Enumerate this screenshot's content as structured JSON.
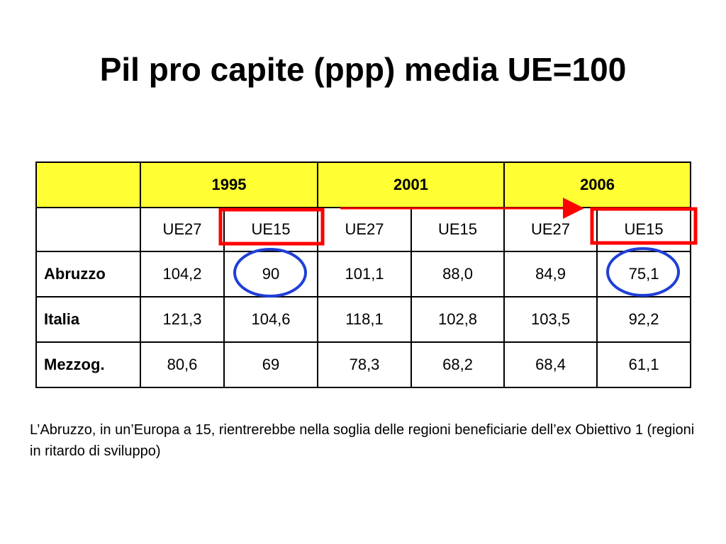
{
  "title": "Pil pro capite (ppp) media UE=100",
  "table": {
    "years": [
      "1995",
      "2001",
      "2006"
    ],
    "subheaders": [
      "UE27",
      "UE15",
      "UE27",
      "UE15",
      "UE27",
      "UE15"
    ],
    "rows": [
      {
        "label": "Abruzzo",
        "values": [
          "104,2",
          "90",
          "101,1",
          "88,0",
          "84,9",
          "75,1"
        ]
      },
      {
        "label": "Italia",
        "values": [
          "121,3",
          "104,6",
          "118,1",
          "102,8",
          "103,5",
          "92,2"
        ]
      },
      {
        "label": "Mezzog.",
        "values": [
          "80,6",
          "69",
          "78,3",
          "68,2",
          "68,4",
          "61,1"
        ]
      }
    ]
  },
  "note": "L’Abruzzo, in un’Europa a 15, rientrerebbe nella soglia delle regioni beneficiarie dell’ex Obiettivo 1 (regioni in ritardo di sviluppo)",
  "colors": {
    "header_fill": "#ffff33",
    "highlight_box": "#ff0000",
    "highlight_circle": "#1f3fd6",
    "arrow": "#ff0000"
  }
}
